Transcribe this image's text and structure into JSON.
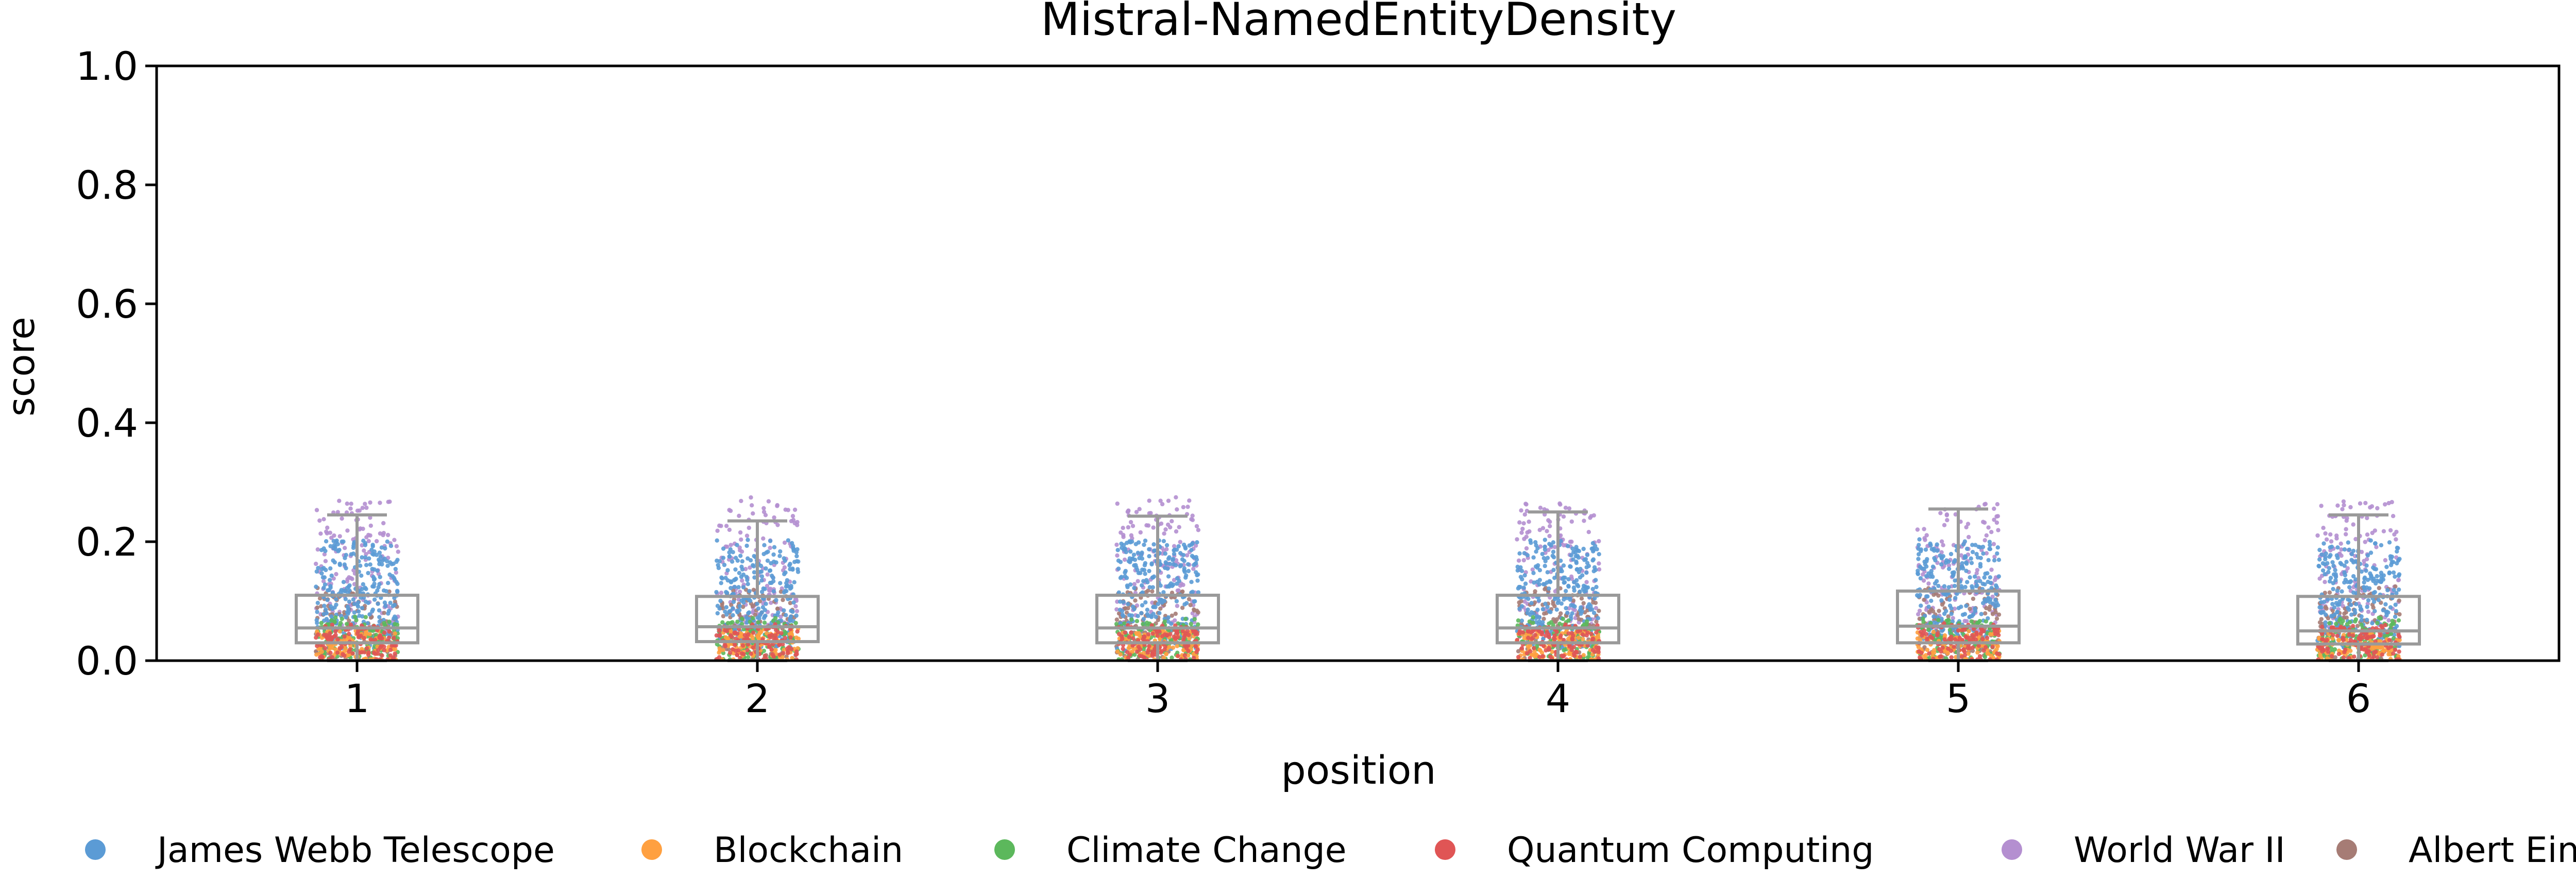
{
  "chart_data": {
    "type": "scatter",
    "title": "Mistral-NamedEntityDensity",
    "xlabel": "position",
    "ylabel": "score",
    "ylim": [
      0.0,
      1.0
    ],
    "yticks": [
      "0.0",
      "0.2",
      "0.4",
      "0.6",
      "0.8",
      "1.0"
    ],
    "categories": [
      "1",
      "2",
      "3",
      "4",
      "5",
      "6"
    ],
    "grid": false,
    "legend_position": "bottom",
    "box_stats": [
      {
        "category": "1",
        "whisker_low": 0.0,
        "q1": 0.03,
        "median": 0.055,
        "q3": 0.11,
        "whisker_high": 0.245
      },
      {
        "category": "2",
        "whisker_low": 0.0,
        "q1": 0.032,
        "median": 0.057,
        "q3": 0.108,
        "whisker_high": 0.235
      },
      {
        "category": "3",
        "whisker_low": 0.0,
        "q1": 0.03,
        "median": 0.055,
        "q3": 0.11,
        "whisker_high": 0.243
      },
      {
        "category": "4",
        "whisker_low": 0.0,
        "q1": 0.03,
        "median": 0.055,
        "q3": 0.11,
        "whisker_high": 0.25
      },
      {
        "category": "5",
        "whisker_low": 0.0,
        "q1": 0.03,
        "median": 0.058,
        "q3": 0.117,
        "whisker_high": 0.255
      },
      {
        "category": "6",
        "whisker_low": 0.0,
        "q1": 0.028,
        "median": 0.05,
        "q3": 0.108,
        "whisker_high": 0.245
      }
    ],
    "series": [
      {
        "name": "James Webb Telescope",
        "color": "#5b9bd5",
        "typical_range": [
          0.02,
          0.2
        ]
      },
      {
        "name": "Blockchain",
        "color": "#ffa040",
        "typical_range": [
          0.0,
          0.05
        ]
      },
      {
        "name": "Climate Change",
        "color": "#5cb85c",
        "typical_range": [
          0.0,
          0.07
        ]
      },
      {
        "name": "Quantum Computing",
        "color": "#e05555",
        "typical_range": [
          0.0,
          0.06
        ]
      },
      {
        "name": "World War II",
        "color": "#b48fd0",
        "typical_range": [
          0.05,
          0.27
        ]
      },
      {
        "name": "Albert Einstein",
        "color": "#a67c75",
        "typical_range": [
          0.0,
          0.12
        ]
      }
    ]
  }
}
